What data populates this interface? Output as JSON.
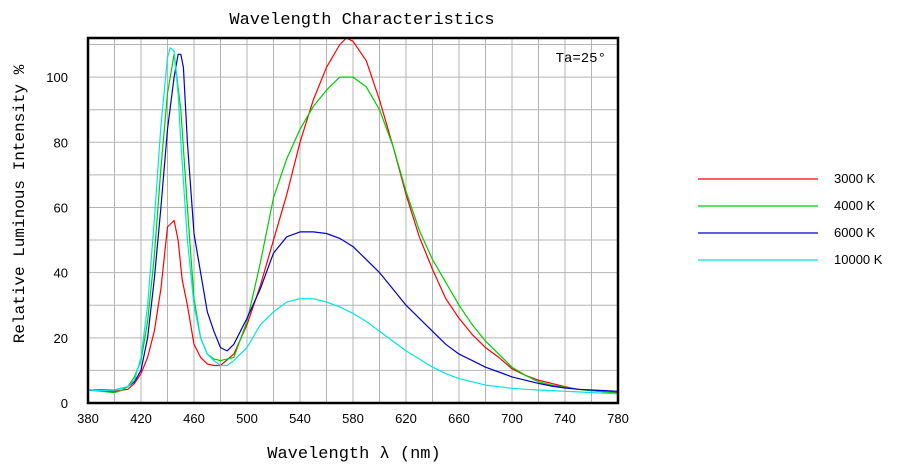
{
  "chart_data": {
    "type": "line",
    "title": "Wavelength Characteristics",
    "xlabel": "Wavelength  λ (nm)",
    "ylabel": "Relative Luminous Intensity %",
    "annotation": "Ta=25°",
    "xlim": [
      380,
      780
    ],
    "ylim": [
      0,
      112
    ],
    "x_ticks": [
      380,
      420,
      460,
      500,
      540,
      580,
      620,
      660,
      700,
      740,
      780
    ],
    "y_ticks": [
      0,
      20,
      40,
      60,
      80,
      100
    ],
    "grid": true,
    "legend_position": "right",
    "series": [
      {
        "name": "3000 K",
        "color": "#ff0000",
        "points": [
          [
            380,
            4
          ],
          [
            390,
            3.8
          ],
          [
            400,
            3.6
          ],
          [
            410,
            4.2
          ],
          [
            415,
            6
          ],
          [
            420,
            9
          ],
          [
            425,
            14
          ],
          [
            430,
            22
          ],
          [
            435,
            35
          ],
          [
            440,
            54
          ],
          [
            445,
            56
          ],
          [
            448,
            50
          ],
          [
            451,
            38
          ],
          [
            455,
            30
          ],
          [
            460,
            18
          ],
          [
            465,
            14
          ],
          [
            470,
            12
          ],
          [
            475,
            11.5
          ],
          [
            480,
            11.5
          ],
          [
            490,
            15
          ],
          [
            500,
            24
          ],
          [
            510,
            36
          ],
          [
            520,
            50
          ],
          [
            530,
            64
          ],
          [
            540,
            80
          ],
          [
            550,
            93
          ],
          [
            560,
            103
          ],
          [
            570,
            110
          ],
          [
            575,
            112
          ],
          [
            580,
            111
          ],
          [
            590,
            105
          ],
          [
            600,
            93
          ],
          [
            610,
            79
          ],
          [
            620,
            64
          ],
          [
            630,
            51
          ],
          [
            640,
            41
          ],
          [
            650,
            32
          ],
          [
            660,
            26
          ],
          [
            670,
            21
          ],
          [
            680,
            17
          ],
          [
            690,
            14
          ],
          [
            700,
            10.5
          ],
          [
            710,
            8.5
          ],
          [
            720,
            7
          ],
          [
            730,
            6
          ],
          [
            740,
            5
          ],
          [
            750,
            4.2
          ],
          [
            760,
            3.8
          ],
          [
            770,
            3.5
          ],
          [
            780,
            3.2
          ]
        ]
      },
      {
        "name": "4000 K",
        "color": "#00cc00",
        "points": [
          [
            380,
            4
          ],
          [
            390,
            3.6
          ],
          [
            400,
            3.2
          ],
          [
            405,
            3.8
          ],
          [
            410,
            5
          ],
          [
            415,
            8
          ],
          [
            420,
            13
          ],
          [
            425,
            25
          ],
          [
            430,
            45
          ],
          [
            435,
            72
          ],
          [
            440,
            95
          ],
          [
            445,
            107
          ],
          [
            450,
            90
          ],
          [
            455,
            60
          ],
          [
            460,
            32
          ],
          [
            465,
            20
          ],
          [
            470,
            15
          ],
          [
            475,
            13.5
          ],
          [
            480,
            13
          ],
          [
            490,
            14
          ],
          [
            500,
            25
          ],
          [
            510,
            43
          ],
          [
            520,
            63
          ],
          [
            530,
            75
          ],
          [
            540,
            84
          ],
          [
            550,
            91
          ],
          [
            560,
            96
          ],
          [
            570,
            100
          ],
          [
            580,
            100
          ],
          [
            590,
            97
          ],
          [
            600,
            90
          ],
          [
            610,
            79
          ],
          [
            620,
            65
          ],
          [
            630,
            53
          ],
          [
            640,
            44
          ],
          [
            650,
            37
          ],
          [
            660,
            30
          ],
          [
            670,
            24
          ],
          [
            680,
            19
          ],
          [
            690,
            15
          ],
          [
            700,
            11
          ],
          [
            710,
            8.5
          ],
          [
            720,
            6.5
          ],
          [
            730,
            5.5
          ],
          [
            740,
            4.8
          ],
          [
            750,
            4.2
          ],
          [
            760,
            3.8
          ],
          [
            770,
            3.4
          ],
          [
            780,
            3
          ]
        ]
      },
      {
        "name": "6000 K",
        "color": "#0000cc",
        "points": [
          [
            380,
            4
          ],
          [
            390,
            4
          ],
          [
            400,
            4
          ],
          [
            410,
            5
          ],
          [
            415,
            6.5
          ],
          [
            420,
            10
          ],
          [
            425,
            20
          ],
          [
            430,
            38
          ],
          [
            435,
            60
          ],
          [
            440,
            84
          ],
          [
            445,
            100
          ],
          [
            448,
            107
          ],
          [
            450,
            107
          ],
          [
            452,
            103
          ],
          [
            455,
            80
          ],
          [
            460,
            52
          ],
          [
            465,
            40
          ],
          [
            470,
            28
          ],
          [
            475,
            22
          ],
          [
            480,
            17
          ],
          [
            485,
            16
          ],
          [
            490,
            18
          ],
          [
            500,
            26
          ],
          [
            510,
            35
          ],
          [
            520,
            46
          ],
          [
            530,
            51
          ],
          [
            540,
            52.5
          ],
          [
            550,
            52.5
          ],
          [
            560,
            52
          ],
          [
            570,
            50.5
          ],
          [
            580,
            48
          ],
          [
            590,
            44
          ],
          [
            600,
            40
          ],
          [
            610,
            35
          ],
          [
            620,
            30
          ],
          [
            630,
            26
          ],
          [
            640,
            22
          ],
          [
            650,
            18
          ],
          [
            660,
            15
          ],
          [
            670,
            13
          ],
          [
            680,
            11
          ],
          [
            690,
            9.5
          ],
          [
            700,
            8
          ],
          [
            710,
            7
          ],
          [
            720,
            6
          ],
          [
            730,
            5.2
          ],
          [
            740,
            4.6
          ],
          [
            750,
            4.2
          ],
          [
            760,
            4
          ],
          [
            770,
            3.8
          ],
          [
            780,
            3.6
          ]
        ]
      },
      {
        "name": "10000 K",
        "color": "#00e5e5",
        "points": [
          [
            380,
            4
          ],
          [
            390,
            3.8
          ],
          [
            400,
            4
          ],
          [
            410,
            5
          ],
          [
            415,
            7
          ],
          [
            420,
            14
          ],
          [
            425,
            30
          ],
          [
            430,
            56
          ],
          [
            435,
            85
          ],
          [
            440,
            106
          ],
          [
            442,
            109
          ],
          [
            445,
            108
          ],
          [
            448,
            95
          ],
          [
            450,
            80
          ],
          [
            455,
            50
          ],
          [
            460,
            30
          ],
          [
            465,
            20
          ],
          [
            470,
            15
          ],
          [
            475,
            13
          ],
          [
            480,
            11.5
          ],
          [
            485,
            11.5
          ],
          [
            490,
            13
          ],
          [
            500,
            17
          ],
          [
            510,
            24
          ],
          [
            520,
            28
          ],
          [
            530,
            31
          ],
          [
            540,
            32
          ],
          [
            550,
            32
          ],
          [
            560,
            31
          ],
          [
            570,
            29.5
          ],
          [
            580,
            27.5
          ],
          [
            590,
            25
          ],
          [
            600,
            22
          ],
          [
            610,
            19
          ],
          [
            620,
            16
          ],
          [
            630,
            13.5
          ],
          [
            640,
            11
          ],
          [
            650,
            9
          ],
          [
            660,
            7.5
          ],
          [
            670,
            6.5
          ],
          [
            680,
            5.5
          ],
          [
            690,
            5
          ],
          [
            700,
            4.5
          ],
          [
            710,
            4.2
          ],
          [
            720,
            4
          ],
          [
            730,
            3.8
          ],
          [
            740,
            3.6
          ],
          [
            750,
            3.4
          ],
          [
            760,
            3.2
          ],
          [
            770,
            3
          ],
          [
            780,
            2.8
          ]
        ]
      }
    ]
  }
}
